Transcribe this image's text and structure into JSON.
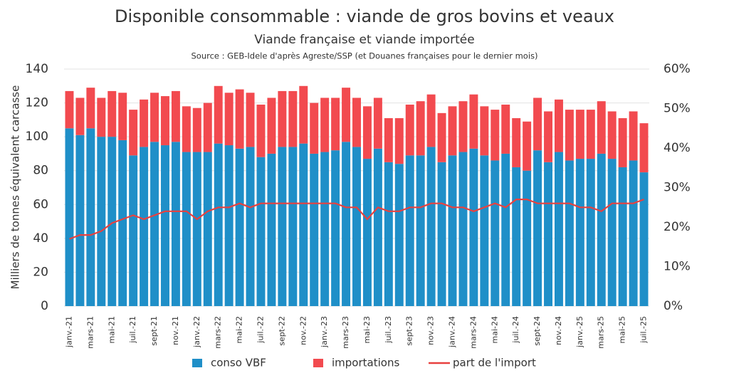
{
  "chart_data": {
    "type": "bar",
    "title": "Disponible consommable : viande de gros bovins et veaux",
    "subtitle": "Viande française et viande importée",
    "source": "Source : GEB-Idele d'après Agreste/SSP (et Douanes françaises pour le dernier mois)",
    "y_label": "Milliers de tonnes équivalent carcasse",
    "stacked": true,
    "categories": [
      "janv.-21",
      null,
      "mars-21",
      null,
      "mai-21",
      null,
      "juil.-21",
      null,
      "sept-21",
      null,
      "nov.-21",
      null,
      "janv.-22",
      null,
      "mars-22",
      null,
      "mai-22",
      null,
      "juil.-22",
      null,
      "sept-22",
      null,
      "nov.-22",
      null,
      "janv.-23",
      null,
      "mars-23",
      null,
      "mai-23",
      null,
      "juil.-23",
      null,
      "sept-23",
      null,
      "nov.-23",
      null,
      "janv.-24",
      null,
      "mars-24",
      null,
      "mai-24",
      null,
      "juil.-24",
      null,
      "sept-24",
      null,
      "nov.-24",
      null,
      "janv.-25",
      null,
      "mars-25",
      null,
      "mai-25",
      null,
      "juil.-25"
    ],
    "series": [
      {
        "name": "conso VBF",
        "color": "#1f8fc8",
        "values": [
          105,
          101,
          105,
          100,
          100,
          98,
          89,
          94,
          97,
          95,
          97,
          91,
          91,
          91,
          96,
          95,
          93,
          94,
          88,
          90,
          94,
          94,
          96,
          90,
          91,
          92,
          97,
          94,
          87,
          93,
          85,
          84,
          89,
          89,
          94,
          85,
          89,
          91,
          93,
          89,
          86,
          90,
          82,
          80,
          92,
          85,
          91,
          86,
          87,
          87,
          90,
          87,
          82,
          86,
          79
        ]
      },
      {
        "name": "importations",
        "color": "#f24a4f",
        "values": [
          22,
          22,
          24,
          23,
          27,
          28,
          27,
          28,
          29,
          29,
          30,
          27,
          26,
          29,
          34,
          31,
          35,
          32,
          31,
          33,
          33,
          33,
          34,
          30,
          32,
          31,
          32,
          29,
          31,
          30,
          26,
          27,
          30,
          32,
          31,
          29,
          29,
          30,
          32,
          29,
          30,
          29,
          29,
          29,
          31,
          30,
          31,
          30,
          29,
          29,
          31,
          28,
          29,
          29,
          29
        ]
      },
      {
        "name": "part de l'import",
        "color": "#e8413f",
        "axis": "y2",
        "type": "line",
        "values": [
          17,
          18,
          18,
          19,
          21,
          22,
          23,
          22,
          23,
          24,
          24,
          24,
          22,
          24,
          25,
          25,
          26,
          25,
          26,
          26,
          26,
          26,
          26,
          26,
          26,
          26,
          25,
          25,
          22,
          25,
          24,
          24,
          25,
          25,
          26,
          26,
          25,
          25,
          24,
          25,
          26,
          25,
          27,
          27,
          26,
          26,
          26,
          26,
          25,
          25,
          24,
          26,
          26,
          26,
          27
        ]
      }
    ],
    "ylim": [
      0,
      140
    ],
    "yticks": [
      0,
      20,
      40,
      60,
      80,
      100,
      120,
      140
    ],
    "y2lim": [
      0,
      60
    ],
    "y2ticks": [
      {
        "value": 0,
        "label": "0%"
      },
      {
        "value": 10,
        "label": "10%"
      },
      {
        "value": 20,
        "label": "20%"
      },
      {
        "value": 30,
        "label": "30%"
      },
      {
        "value": 40,
        "label": "40%"
      },
      {
        "value": 50,
        "label": "50%"
      },
      {
        "value": 60,
        "label": "60%"
      }
    ],
    "grid": true,
    "legend": "bottom"
  }
}
